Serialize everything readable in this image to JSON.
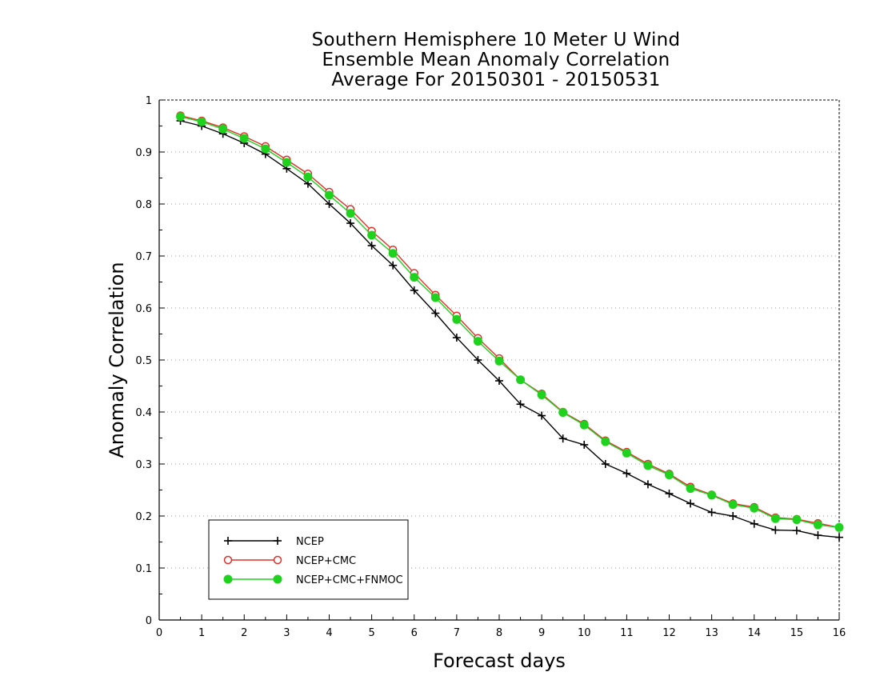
{
  "chart_data": {
    "type": "line",
    "title_lines": [
      "Southern Hemisphere 10 Meter U Wind",
      "Ensemble Mean Anomaly Correlation",
      "Average For 20150301 - 20150531"
    ],
    "xlabel": "Forecast days",
    "ylabel": "Anomaly Correlation",
    "xlim": [
      0,
      16
    ],
    "ylim": [
      0,
      1
    ],
    "xticks": [
      "0",
      "1",
      "2",
      "3",
      "4",
      "5",
      "6",
      "7",
      "8",
      "9",
      "10",
      "11",
      "12",
      "13",
      "14",
      "15",
      "16"
    ],
    "yticks": [
      "0",
      "0.1",
      "0.2",
      "0.3",
      "0.4",
      "0.5",
      "0.6",
      "0.7",
      "0.8",
      "0.9",
      "1"
    ],
    "grid": "horizontal dotted",
    "legend_position": "bottom-left",
    "x": [
      0.5,
      1,
      1.5,
      2,
      2.5,
      3,
      3.5,
      4,
      4.5,
      5,
      5.5,
      6,
      6.5,
      7,
      7.5,
      8,
      8.5,
      9,
      9.5,
      10,
      10.5,
      11,
      11.5,
      12,
      12.5,
      13,
      13.5,
      14,
      14.5,
      15,
      15.5,
      16
    ],
    "series": [
      {
        "name": "NCEP",
        "color": "#000000",
        "marker": "plus",
        "values": [
          0.96,
          0.95,
          0.935,
          0.917,
          0.896,
          0.868,
          0.839,
          0.8,
          0.763,
          0.72,
          0.682,
          0.634,
          0.59,
          0.543,
          0.5,
          0.46,
          0.415,
          0.393,
          0.349,
          0.337,
          0.3,
          0.282,
          0.261,
          0.243,
          0.224,
          0.207,
          0.2,
          0.185,
          0.173,
          0.172,
          0.163,
          0.159
        ]
      },
      {
        "name": "NCEP+CMC",
        "color": "#e0302a",
        "marker": "open-circle",
        "values": [
          0.97,
          0.96,
          0.947,
          0.93,
          0.911,
          0.885,
          0.858,
          0.823,
          0.79,
          0.748,
          0.712,
          0.667,
          0.625,
          0.585,
          0.542,
          0.503,
          0.462,
          0.435,
          0.4,
          0.377,
          0.345,
          0.323,
          0.3,
          0.281,
          0.256,
          0.241,
          0.224,
          0.217,
          0.197,
          0.194,
          0.186,
          0.178
        ]
      },
      {
        "name": "NCEP+CMC+FNMOC",
        "color": "#1ed21e",
        "marker": "filled-circle",
        "values": [
          0.968,
          0.958,
          0.944,
          0.926,
          0.906,
          0.88,
          0.852,
          0.817,
          0.782,
          0.74,
          0.705,
          0.659,
          0.62,
          0.578,
          0.536,
          0.498,
          0.462,
          0.433,
          0.399,
          0.375,
          0.343,
          0.321,
          0.297,
          0.279,
          0.253,
          0.24,
          0.222,
          0.215,
          0.195,
          0.193,
          0.183,
          0.178
        ]
      }
    ]
  }
}
